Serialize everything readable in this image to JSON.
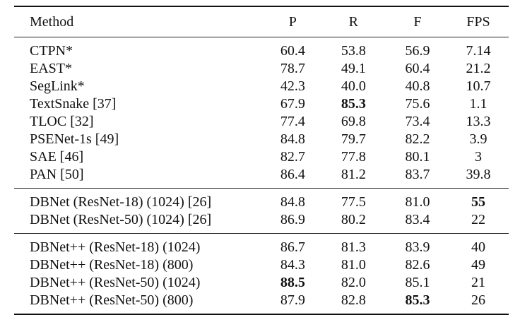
{
  "table": {
    "headers": [
      "Method",
      "P",
      "R",
      "F",
      "FPS"
    ],
    "groups": [
      {
        "rows": [
          {
            "method": "CTPN*",
            "p": "60.4",
            "r": "53.8",
            "f": "56.9",
            "fps": "7.14"
          },
          {
            "method": "EAST*",
            "p": "78.7",
            "r": "49.1",
            "f": "60.4",
            "fps": "21.2"
          },
          {
            "method": "SegLink*",
            "p": "42.3",
            "r": "40.0",
            "f": "40.8",
            "fps": "10.7"
          },
          {
            "method": "TextSnake [37]",
            "p": "67.9",
            "r": "85.3",
            "f": "75.6",
            "fps": "1.1"
          },
          {
            "method": "TLOC [32]",
            "p": "77.4",
            "r": "69.8",
            "f": "73.4",
            "fps": "13.3"
          },
          {
            "method": "PSENet-1s [49]",
            "p": "84.8",
            "r": "79.7",
            "f": "82.2",
            "fps": "3.9"
          },
          {
            "method": "SAE [46]",
            "p": "82.7",
            "r": "77.8",
            "f": "80.1",
            "fps": "3"
          },
          {
            "method": "PAN [50]",
            "p": "86.4",
            "r": "81.2",
            "f": "83.7",
            "fps": "39.8"
          }
        ]
      },
      {
        "rows": [
          {
            "method": "DBNet (ResNet-18) (1024) [26]",
            "p": "84.8",
            "r": "77.5",
            "f": "81.0",
            "fps": "55"
          },
          {
            "method": "DBNet (ResNet-50) (1024) [26]",
            "p": "86.9",
            "r": "80.2",
            "f": "83.4",
            "fps": "22"
          }
        ]
      },
      {
        "rows": [
          {
            "method": "DBNet++ (ResNet-18) (1024)",
            "p": "86.7",
            "r": "81.3",
            "f": "83.9",
            "fps": "40"
          },
          {
            "method": "DBNet++ (ResNet-18) (800)",
            "p": "84.3",
            "r": "81.0",
            "f": "82.6",
            "fps": "49"
          },
          {
            "method": "DBNet++ (ResNet-50) (1024)",
            "p": "88.5",
            "r": "82.0",
            "f": "85.1",
            "fps": "21"
          },
          {
            "method": "DBNet++ (ResNet-50) (800)",
            "p": "87.9",
            "r": "82.8",
            "f": "85.3",
            "fps": "26"
          }
        ]
      }
    ]
  }
}
